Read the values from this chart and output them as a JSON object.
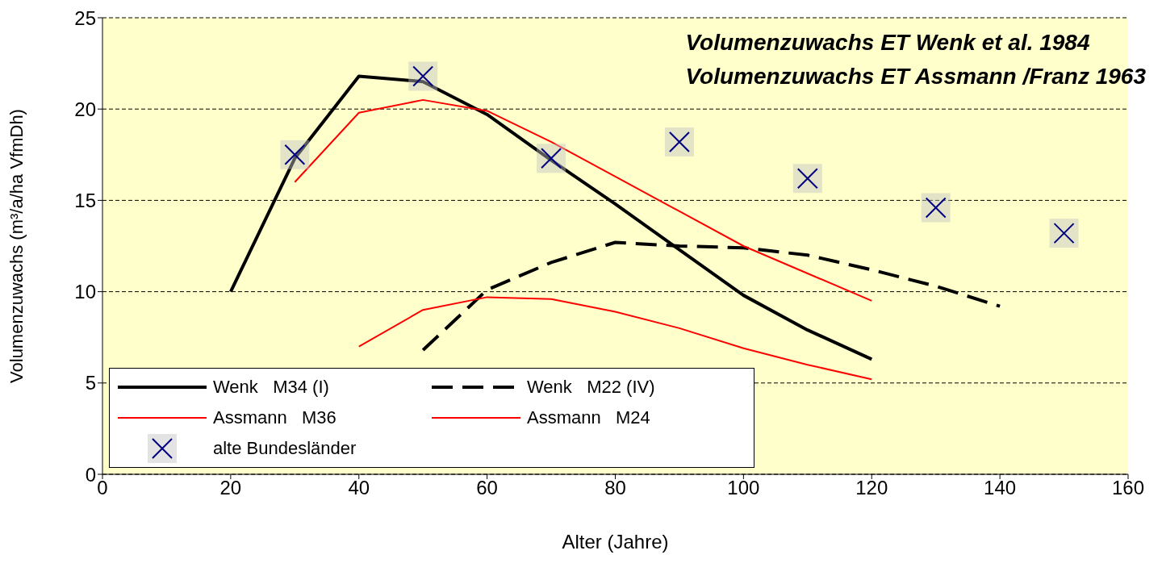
{
  "chart_data": {
    "type": "line",
    "xlabel": "Alter (Jahre)",
    "ylabel": "Volumenzuwachs (m³/a/ha VfmDh)",
    "xlim": [
      0,
      160
    ],
    "xticks": [
      0,
      20,
      40,
      60,
      80,
      100,
      120,
      140,
      160
    ],
    "ylim": [
      0,
      25
    ],
    "yticks": [
      0,
      5,
      10,
      15,
      20,
      25
    ],
    "grid": "y",
    "legend": "bottom left",
    "annotations": [
      "Volumenzuwachs ET Wenk et al. 1984",
      "Volumenzuwachs ET Assmann /Franz 1963"
    ],
    "series": [
      {
        "name": "Wenk   M34 (I)",
        "color": "#000000",
        "line_style": "solid",
        "x": [
          20,
          30,
          40,
          50,
          60,
          70,
          80,
          90,
          100,
          110,
          120
        ],
        "values": [
          10,
          17.3,
          21.8,
          21.5,
          19.7,
          17.2,
          14.8,
          12.3,
          9.8,
          7.9,
          6.3
        ]
      },
      {
        "name": "Wenk   M22 (IV)",
        "color": "#000000",
        "line_style": "dashed",
        "x": [
          50,
          60,
          70,
          80,
          90,
          100,
          110,
          120,
          130,
          140
        ],
        "values": [
          6.8,
          10.1,
          11.6,
          12.7,
          12.5,
          12.4,
          12.0,
          11.2,
          10.3,
          9.2
        ]
      },
      {
        "name": "Assmann   M36",
        "color": "#ff0000",
        "line_style": "solid",
        "x": [
          30,
          40,
          50,
          60,
          70,
          80,
          90,
          100,
          110,
          120
        ],
        "values": [
          16.0,
          19.8,
          20.5,
          19.9,
          18.2,
          16.3,
          14.4,
          12.5,
          11.0,
          9.5
        ]
      },
      {
        "name": "Assmann   M24",
        "color": "#ff0000",
        "line_style": "solid",
        "x": [
          40,
          50,
          60,
          70,
          80,
          90,
          100,
          110,
          120
        ],
        "values": [
          7.0,
          9.0,
          9.7,
          9.6,
          8.9,
          8.0,
          6.9,
          6.0,
          5.2
        ]
      },
      {
        "name": "alte Bundesländer",
        "type": "scatter",
        "color": "#000080",
        "marker": "cross",
        "x": [
          30,
          50,
          70,
          90,
          110,
          130,
          150
        ],
        "values": [
          17.5,
          21.8,
          17.3,
          18.2,
          16.2,
          14.6,
          13.2
        ]
      }
    ]
  }
}
